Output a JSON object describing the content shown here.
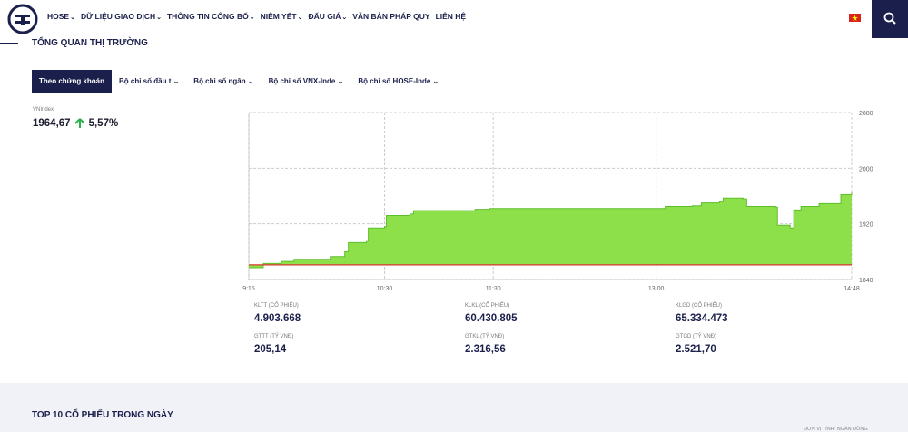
{
  "header": {
    "nav": [
      "HOSE",
      "DỮ LIỆU GIAO DỊCH",
      "THÔNG TIN CÔNG BỐ",
      "NIÊM YẾT",
      "ĐẤU GIÁ",
      "VĂN BẢN PHÁP QUY",
      "LIÊN HỆ"
    ]
  },
  "section_title": "TỔNG QUAN THỊ TRƯỜNG",
  "tabs": [
    "Theo chứng khoán",
    "Bộ chỉ số đầu t",
    "Bộ chỉ số ngân",
    "Bộ chỉ số VNX-Inde",
    "Bộ chỉ số HOSE-Inde"
  ],
  "index": {
    "name": "VNIndex",
    "value": "1964,67",
    "change": "5,57%"
  },
  "chart_data": {
    "type": "area",
    "color": "#8ee04a",
    "line_color": "#5cbf2a",
    "reference": 1861,
    "reference_color": "#d9362b",
    "x": [
      "9:15",
      "9:22",
      "9:23",
      "9:33",
      "9:40",
      "9:55",
      "10:00",
      "10:08",
      "10:10",
      "10:20",
      "10:21",
      "10:30",
      "10:31",
      "10:44",
      "10:46",
      "11:20",
      "11:28",
      "13:00",
      "13:05",
      "13:20",
      "13:25",
      "13:35",
      "13:37",
      "13:48",
      "13:50",
      "14:06",
      "14:07",
      "14:14",
      "14:16",
      "14:20",
      "14:30",
      "14:40",
      "14:42",
      "14:48"
    ],
    "values": [
      1857,
      1857,
      1863,
      1866,
      1869,
      1869,
      1873,
      1880,
      1893,
      1896,
      1914,
      1916,
      1932,
      1934,
      1939,
      1941,
      1942,
      1942,
      1945,
      1946,
      1950,
      1952,
      1957,
      1956,
      1945,
      1944,
      1918,
      1914,
      1940,
      1945,
      1949,
      1949,
      1962,
      1965
    ],
    "xlim": [
      "9:15",
      "14:48"
    ],
    "xticks": [
      "9:15",
      "10:30",
      "11:30",
      "13:00",
      "14:48"
    ],
    "ylim": [
      1840,
      2080
    ],
    "yticks": [
      1840,
      1920,
      2000,
      2080
    ],
    "grid": true
  },
  "stats": [
    {
      "label": "KLTT (CỔ PHIẾU)",
      "value": "4.903.668"
    },
    {
      "label": "KLKL (CỔ PHIẾU)",
      "value": "60.430.805"
    },
    {
      "label": "KLGD (CỔ PHIẾU)",
      "value": "65.334.473"
    },
    {
      "label": "GTTT (TỶ VNĐ)",
      "value": "205,14"
    },
    {
      "label": "GTKL (TỶ VNĐ)",
      "value": "2.316,56"
    },
    {
      "label": "GTGD (TỶ VNĐ)",
      "value": "2.521,70"
    }
  ],
  "top10": {
    "title": "TOP 10 CỔ PHIẾU TRONG NGÀY",
    "unit": "ĐƠN VỊ TÍNH: NGÀN ĐỒNG"
  }
}
